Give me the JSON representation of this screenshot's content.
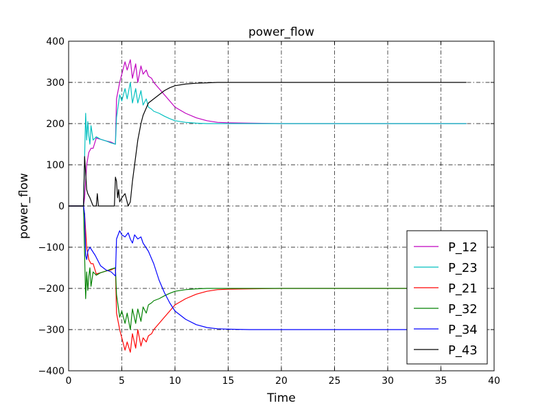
{
  "chart_data": {
    "type": "line",
    "title": "power_flow",
    "xlabel": "Time",
    "ylabel": "power_flow",
    "xlim": [
      0,
      40
    ],
    "ylim": [
      -400,
      400
    ],
    "xticks": [
      0,
      5,
      10,
      15,
      20,
      25,
      30,
      35,
      40
    ],
    "yticks": [
      -400,
      -300,
      -200,
      -100,
      0,
      100,
      200,
      300,
      400
    ],
    "grid": true,
    "grid_style": "dash-dot",
    "legend_position": "lower-right",
    "series": [
      {
        "name": "P_12",
        "color": "#bf00bf",
        "x": [
          0,
          1.4,
          1.5,
          1.7,
          1.9,
          2.1,
          2.3,
          2.6,
          3.0,
          3.5,
          4.0,
          4.4,
          4.5,
          4.8,
          5.0,
          5.3,
          5.5,
          5.8,
          6.0,
          6.3,
          6.5,
          6.8,
          7.0,
          7.3,
          7.5,
          7.8,
          8.0,
          8.5,
          9.0,
          9.5,
          10,
          11,
          12,
          13,
          14,
          15,
          17,
          20,
          25,
          30,
          35,
          37.4
        ],
        "y": [
          0,
          0,
          20,
          100,
          130,
          140,
          140,
          165,
          162,
          158,
          155,
          150,
          260,
          300,
          320,
          350,
          330,
          355,
          310,
          345,
          300,
          340,
          320,
          330,
          315,
          310,
          300,
          285,
          270,
          255,
          240,
          225,
          214,
          207,
          203,
          202,
          201,
          200,
          200,
          200,
          200,
          200
        ]
      },
      {
        "name": "P_23",
        "color": "#00bfbf",
        "x": [
          0,
          1.4,
          1.5,
          1.6,
          1.7,
          1.8,
          1.9,
          2.0,
          2.1,
          2.3,
          2.6,
          3.0,
          3.5,
          4.0,
          4.4,
          4.5,
          4.8,
          5.0,
          5.3,
          5.5,
          5.8,
          6.0,
          6.3,
          6.5,
          6.8,
          7.0,
          7.3,
          7.5,
          7.8,
          8.0,
          8.5,
          9.0,
          9.5,
          10,
          11,
          12,
          13,
          15,
          20,
          25,
          30,
          35,
          37.4
        ],
        "y": [
          0,
          0,
          120,
          225,
          160,
          205,
          170,
          150,
          195,
          160,
          168,
          162,
          158,
          153,
          150,
          215,
          270,
          255,
          285,
          260,
          300,
          250,
          285,
          250,
          280,
          245,
          260,
          240,
          235,
          230,
          225,
          218,
          212,
          207,
          203,
          201,
          200,
          200,
          200,
          200,
          200,
          200,
          200
        ]
      },
      {
        "name": "P_21",
        "color": "#ff0000",
        "x": [
          0,
          1.4,
          1.5,
          1.7,
          1.9,
          2.1,
          2.3,
          2.6,
          3.0,
          3.5,
          4.0,
          4.4,
          4.5,
          4.8,
          5.0,
          5.3,
          5.5,
          5.8,
          6.0,
          6.3,
          6.5,
          6.8,
          7.0,
          7.3,
          7.5,
          7.8,
          8.0,
          8.5,
          9.0,
          9.5,
          10,
          11,
          12,
          13,
          14,
          15,
          17,
          20,
          25,
          30,
          35,
          37.4
        ],
        "y": [
          0,
          0,
          -20,
          -100,
          -130,
          -140,
          -140,
          -165,
          -162,
          -158,
          -155,
          -150,
          -260,
          -300,
          -320,
          -350,
          -330,
          -355,
          -310,
          -345,
          -300,
          -340,
          -320,
          -330,
          -315,
          -310,
          -300,
          -285,
          -270,
          -255,
          -240,
          -225,
          -214,
          -207,
          -203,
          -202,
          -201,
          -200,
          -200,
          -200,
          -200,
          -200
        ]
      },
      {
        "name": "P_32",
        "color": "#008000",
        "x": [
          0,
          1.4,
          1.5,
          1.6,
          1.7,
          1.8,
          1.9,
          2.0,
          2.1,
          2.3,
          2.6,
          3.0,
          3.5,
          4.0,
          4.4,
          4.5,
          4.8,
          5.0,
          5.3,
          5.5,
          5.8,
          6.0,
          6.3,
          6.5,
          6.8,
          7.0,
          7.3,
          7.5,
          7.8,
          8.0,
          8.5,
          9.0,
          9.5,
          10,
          11,
          12,
          13,
          15,
          20,
          25,
          30,
          35,
          37.4
        ],
        "y": [
          0,
          0,
          -120,
          -225,
          -160,
          -205,
          -170,
          -150,
          -195,
          -160,
          -168,
          -162,
          -158,
          -153,
          -150,
          -215,
          -270,
          -255,
          -285,
          -260,
          -300,
          -250,
          -285,
          -250,
          -280,
          -245,
          -260,
          -240,
          -235,
          -230,
          -225,
          -218,
          -212,
          -207,
          -203,
          -201,
          -200,
          -200,
          -200,
          -200,
          -200,
          -200,
          -200
        ]
      },
      {
        "name": "P_34",
        "color": "#0000ff",
        "x": [
          0,
          1.4,
          1.5,
          1.6,
          1.7,
          1.8,
          2.0,
          2.5,
          3.0,
          3.5,
          4.0,
          4.4,
          4.5,
          4.8,
          5.0,
          5.3,
          5.6,
          5.8,
          6.0,
          6.2,
          6.5,
          6.8,
          7.0,
          7.5,
          8.0,
          8.5,
          9.0,
          9.5,
          10,
          11,
          12,
          13,
          14,
          15,
          17,
          20,
          25,
          30,
          35,
          37.4
        ],
        "y": [
          0,
          0,
          -20,
          -120,
          -130,
          -110,
          -100,
          -120,
          -145,
          -155,
          -160,
          -170,
          -80,
          -60,
          -70,
          -75,
          -65,
          -80,
          -90,
          -70,
          -80,
          -75,
          -90,
          -110,
          -140,
          -180,
          -210,
          -235,
          -255,
          -275,
          -288,
          -295,
          -298,
          -299,
          -300,
          -300,
          -300,
          -300,
          -300,
          -300
        ]
      },
      {
        "name": "P_43",
        "color": "#000000",
        "x": [
          0,
          1.4,
          1.5,
          1.6,
          1.7,
          1.8,
          2.0,
          2.3,
          2.6,
          2.7,
          2.8,
          3.0,
          3.5,
          4.0,
          4.3,
          4.4,
          4.5,
          4.6,
          4.7,
          4.8,
          5.0,
          5.3,
          5.6,
          5.8,
          6.0,
          6.3,
          6.5,
          6.8,
          7.0,
          7.5,
          8.0,
          8.5,
          9.0,
          9.5,
          10,
          11,
          12,
          13,
          14,
          15,
          17,
          20,
          25,
          30,
          35,
          37.4
        ],
        "y": [
          0,
          0,
          120,
          80,
          40,
          30,
          20,
          0,
          0,
          30,
          0,
          0,
          0,
          0,
          0,
          70,
          60,
          20,
          40,
          10,
          20,
          30,
          0,
          10,
          60,
          120,
          160,
          200,
          220,
          250,
          260,
          270,
          280,
          287,
          292,
          296,
          298,
          299,
          300,
          300,
          300,
          300,
          300,
          300,
          300,
          300
        ]
      }
    ]
  }
}
